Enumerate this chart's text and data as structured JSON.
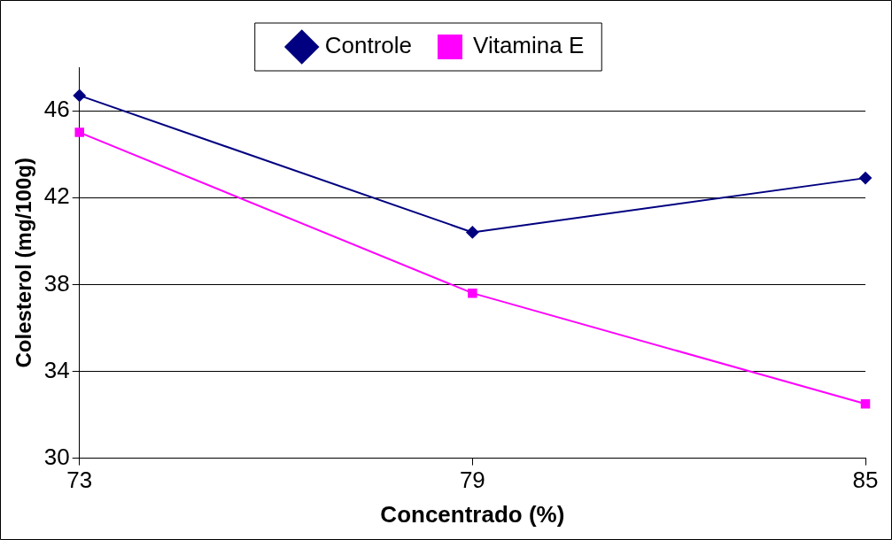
{
  "chart_data": {
    "type": "line",
    "xlabel": "Concentrado (%)",
    "ylabel": "Colesterol (mg/100g)",
    "categories": [
      "73",
      "79",
      "85"
    ],
    "series": [
      {
        "name": "Controle",
        "color": "#000080",
        "marker": "diamond",
        "values": [
          46.7,
          40.4,
          42.9
        ]
      },
      {
        "name": "Vitamina E",
        "color": "#ff00ff",
        "marker": "square",
        "values": [
          45.0,
          37.6,
          32.5
        ]
      }
    ],
    "ylim": [
      30,
      48
    ],
    "yticks": [
      30,
      34,
      38,
      42,
      46
    ],
    "grid": "y",
    "legend": "top"
  }
}
